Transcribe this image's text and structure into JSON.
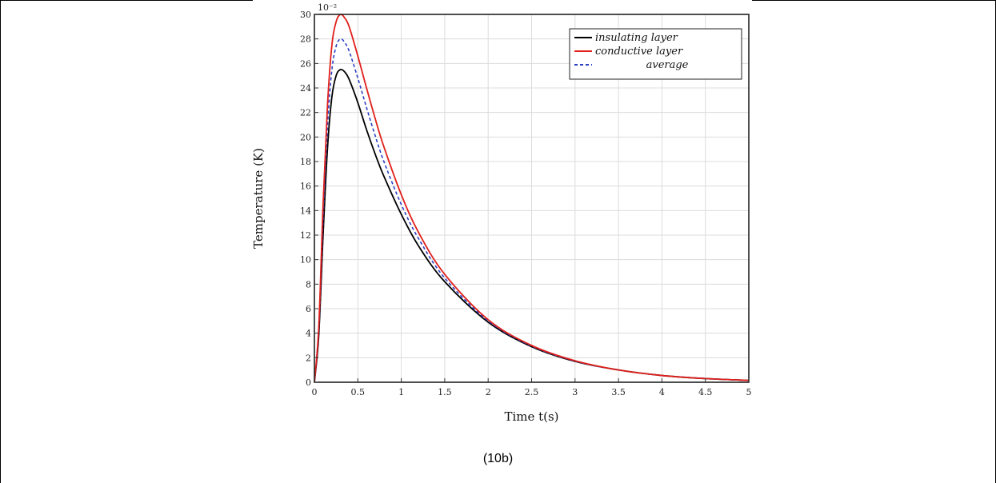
{
  "chart_data": {
    "type": "line",
    "xlabel": "Time t(s)",
    "ylabel": "Temperature (K)",
    "y_multiplier_label": "10⁻²",
    "xlim": [
      0,
      5
    ],
    "ylim": [
      0,
      30
    ],
    "x_ticks": [
      "0",
      "0.5",
      "1",
      "1.5",
      "2",
      "2.5",
      "3",
      "3.5",
      "4",
      "4.5",
      "5"
    ],
    "y_ticks": [
      "0",
      "2",
      "4",
      "6",
      "8",
      "10",
      "12",
      "14",
      "16",
      "18",
      "20",
      "22",
      "24",
      "26",
      "28",
      "30"
    ],
    "grid": true,
    "legend_position": "top-right",
    "series": [
      {
        "name": "insulating layer",
        "color": "#000000",
        "style": "solid",
        "x": [
          0,
          0.05,
          0.1,
          0.15,
          0.2,
          0.25,
          0.3,
          0.35,
          0.4,
          0.5,
          0.6,
          0.7,
          0.8,
          1.0,
          1.2,
          1.5,
          2.0,
          2.5,
          3.0,
          3.5,
          4.0,
          4.5,
          5.0
        ],
        "y": [
          0,
          3.8,
          12.0,
          19.0,
          23.2,
          25.0,
          25.5,
          25.3,
          24.7,
          22.8,
          20.6,
          18.6,
          16.8,
          13.7,
          11.1,
          8.2,
          4.9,
          2.9,
          1.7,
          1.0,
          0.55,
          0.3,
          0.15
        ]
      },
      {
        "name": "conductive layer",
        "color": "#e0201b",
        "style": "solid",
        "x": [
          0,
          0.05,
          0.1,
          0.15,
          0.2,
          0.25,
          0.3,
          0.35,
          0.4,
          0.5,
          0.6,
          0.7,
          0.8,
          1.0,
          1.2,
          1.5,
          2.0,
          2.5,
          3.0,
          3.5,
          4.0,
          4.5,
          5.0
        ],
        "y": [
          0,
          4.5,
          14.5,
          22.5,
          27.4,
          29.4,
          30.0,
          29.7,
          29.0,
          26.6,
          24.0,
          21.5,
          19.2,
          15.3,
          12.2,
          8.8,
          5.1,
          3.0,
          1.75,
          1.0,
          0.55,
          0.3,
          0.15
        ]
      },
      {
        "name": "average",
        "color": "#2b3fc4",
        "style": "dashed",
        "x": [
          0,
          0.05,
          0.1,
          0.15,
          0.2,
          0.25,
          0.3,
          0.35,
          0.4,
          0.5,
          0.6,
          0.7,
          0.8,
          1.0,
          1.2,
          1.5,
          2.0,
          2.5,
          3.0,
          3.5,
          4.0,
          4.5,
          5.0
        ],
        "y": [
          0,
          4.2,
          13.3,
          20.8,
          25.4,
          27.4,
          28.0,
          27.7,
          27.0,
          24.8,
          22.4,
          20.1,
          18.0,
          14.5,
          11.7,
          8.5,
          5.0,
          2.95,
          1.72,
          1.0,
          0.55,
          0.3,
          0.15
        ]
      }
    ]
  },
  "caption": "(10b)"
}
